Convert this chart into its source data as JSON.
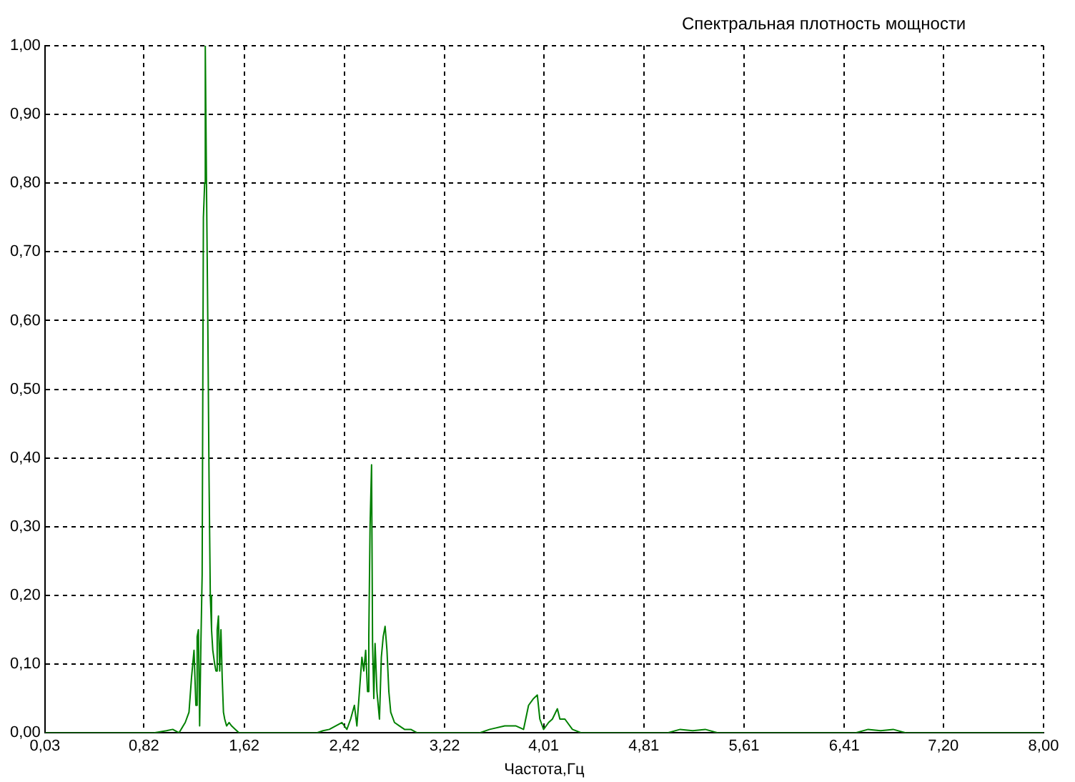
{
  "chart_data": {
    "type": "line",
    "title": "Спектральная плотность мощности",
    "xlabel": "Частота,Гц",
    "x": [
      0.03,
      0.9,
      1.0,
      1.05,
      1.1,
      1.15,
      1.18,
      1.2,
      1.22,
      1.235,
      1.245,
      1.255,
      1.265,
      1.275,
      1.285,
      1.295,
      1.305,
      1.31,
      1.32,
      1.33,
      1.34,
      1.35,
      1.36,
      1.37,
      1.385,
      1.395,
      1.405,
      1.415,
      1.425,
      1.435,
      1.445,
      1.455,
      1.465,
      1.48,
      1.5,
      1.52,
      1.55,
      1.58,
      2.2,
      2.25,
      2.3,
      2.35,
      2.4,
      2.44,
      2.47,
      2.5,
      2.52,
      2.54,
      2.56,
      2.575,
      2.59,
      2.605,
      2.615,
      2.625,
      2.637,
      2.645,
      2.655,
      2.665,
      2.68,
      2.7,
      2.715,
      2.73,
      2.745,
      2.76,
      2.775,
      2.79,
      2.82,
      2.86,
      2.9,
      2.95,
      3.0,
      3.5,
      3.58,
      3.7,
      3.79,
      3.85,
      3.89,
      3.93,
      3.96,
      3.98,
      4.01,
      4.05,
      4.08,
      4.12,
      4.14,
      4.18,
      4.24,
      4.31,
      5.0,
      5.1,
      5.2,
      5.3,
      5.4,
      6.5,
      6.6,
      6.7,
      6.8,
      6.9,
      8.0
    ],
    "values": [
      0,
      0,
      0.003,
      0.005,
      0,
      0.015,
      0.03,
      0.08,
      0.12,
      0.04,
      0.14,
      0.15,
      0.01,
      0.13,
      0.23,
      0.75,
      0.8,
      1.0,
      0.79,
      0.6,
      0.37,
      0.2,
      0.15,
      0.12,
      0.1,
      0.09,
      0.15,
      0.17,
      0.09,
      0.15,
      0.08,
      0.03,
      0.02,
      0.01,
      0.015,
      0.01,
      0.005,
      0,
      0,
      0.003,
      0.005,
      0.01,
      0.015,
      0.005,
      0.02,
      0.04,
      0.01,
      0.06,
      0.11,
      0.09,
      0.12,
      0.06,
      0.14,
      0.3,
      0.39,
      0.13,
      0.05,
      0.13,
      0.06,
      0.02,
      0.11,
      0.14,
      0.155,
      0.12,
      0.06,
      0.03,
      0.015,
      0.01,
      0.005,
      0.005,
      0,
      0,
      0.005,
      0.01,
      0.01,
      0.005,
      0.04,
      0.05,
      0.055,
      0.02,
      0.005,
      0.015,
      0.02,
      0.035,
      0.02,
      0.02,
      0.005,
      0,
      0,
      0.005,
      0.003,
      0.005,
      0,
      0,
      0.005,
      0.003,
      0.005,
      0,
      0
    ],
    "color": "#008000",
    "marker": "none",
    "line_style": "solid",
    "grid": true,
    "legend": false,
    "xlim": [
      0.03,
      8.0
    ],
    "xticks": [
      {
        "value": 0.03,
        "label": "0,03"
      },
      {
        "value": 0.82,
        "label": "0,82"
      },
      {
        "value": 1.62,
        "label": "1,62"
      },
      {
        "value": 2.42,
        "label": "2,42"
      },
      {
        "value": 3.22,
        "label": "3,22"
      },
      {
        "value": 4.01,
        "label": "4,01"
      },
      {
        "value": 4.81,
        "label": "4,81"
      },
      {
        "value": 5.61,
        "label": "5,61"
      },
      {
        "value": 6.41,
        "label": "6,41"
      },
      {
        "value": 7.2,
        "label": "7,20"
      },
      {
        "value": 8.0,
        "label": "8,00"
      }
    ],
    "ylim": [
      0,
      1.0
    ],
    "yticks": [
      {
        "value": 0,
        "label": "0,00"
      },
      {
        "value": 0.1,
        "label": "0,10"
      },
      {
        "value": 0.2,
        "label": "0,20"
      },
      {
        "value": 0.3,
        "label": "0,30"
      },
      {
        "value": 0.4,
        "label": "0,40"
      },
      {
        "value": 0.5,
        "label": "0,50"
      },
      {
        "value": 0.6,
        "label": "0,60"
      },
      {
        "value": 0.7,
        "label": "0,70"
      },
      {
        "value": 0.8,
        "label": "0,80"
      },
      {
        "value": 0.9,
        "label": "0,90"
      },
      {
        "value": 1.0,
        "label": "1,00"
      }
    ]
  }
}
